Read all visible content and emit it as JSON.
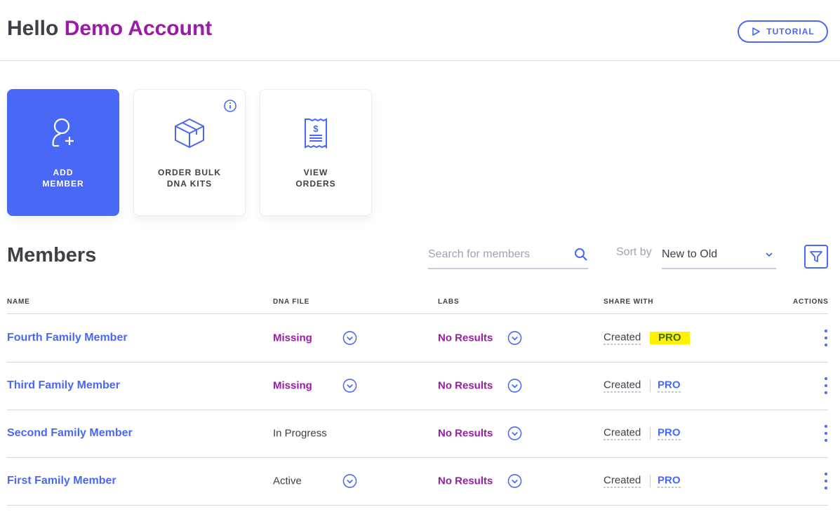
{
  "header": {
    "greeting": "Hello",
    "account_name": "Demo Account",
    "tutorial_label": "TUTORIAL"
  },
  "cards": [
    {
      "label_line1": "ADD",
      "label_line2": "MEMBER",
      "icon": "add-user-icon"
    },
    {
      "label_line1": "ORDER BULK",
      "label_line2": "DNA KITS",
      "icon": "box-icon"
    },
    {
      "label_line1": "VIEW",
      "label_line2": "ORDERS",
      "icon": "receipt-icon"
    }
  ],
  "members": {
    "title": "Members",
    "search_placeholder": "Search for members",
    "sort_label": "Sort by",
    "sort_value": "New to Old"
  },
  "table": {
    "columns": [
      "NAME",
      "DNA FILE",
      "LABS",
      "SHARE WITH",
      "ACTIONS"
    ],
    "rows": [
      {
        "name": "Fourth Family Member",
        "dna": "Missing",
        "labs": "No Results",
        "share": "Created",
        "plan": "PRO"
      },
      {
        "name": "Third Family Member",
        "dna": "Missing",
        "labs": "No Results",
        "share": "Created",
        "plan": "PRO"
      },
      {
        "name": "Second Family Member",
        "dna": "In Progress",
        "labs": "No Results",
        "share": "Created",
        "plan": "PRO"
      },
      {
        "name": "First Family Member",
        "dna": "Active",
        "labs": "No Results",
        "share": "Created",
        "plan": "PRO"
      }
    ]
  },
  "colors": {
    "accent": "#4868f5",
    "purple": "#9b1aa8",
    "highlight": "#fff200"
  }
}
